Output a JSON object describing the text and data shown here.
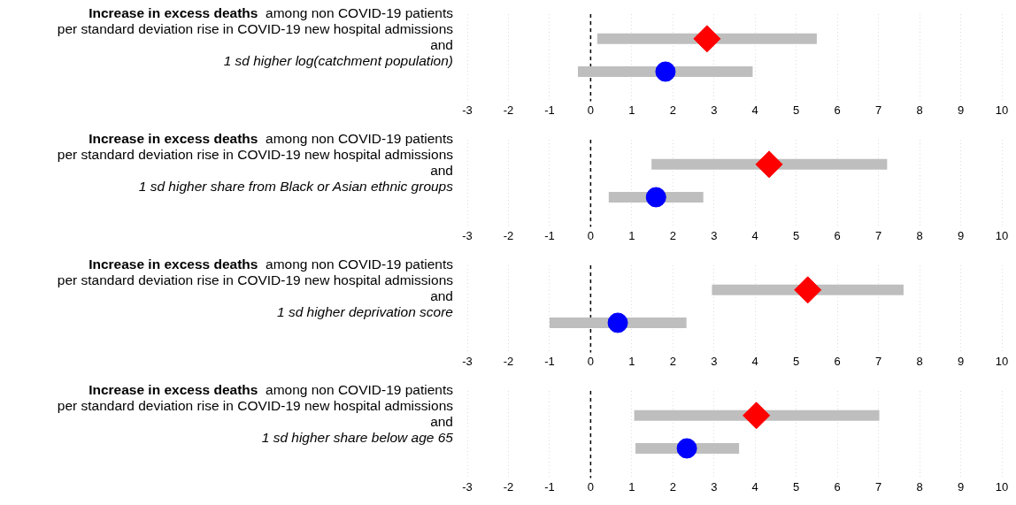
{
  "chart_data": [
    {
      "type": "scatter",
      "orientation": "horizontal",
      "categories": [
        null,
        null
      ],
      "xlim": [
        -3,
        10
      ],
      "xticks": [
        -3,
        -2,
        -1,
        0,
        1,
        2,
        3,
        4,
        5,
        6,
        7,
        8,
        9,
        10
      ],
      "grid": "x",
      "legend": false,
      "tick_labels": "x",
      "annotations": [
        "Increase in excess deaths",
        "among non COVID-19 patients",
        "per standard deviation rise in COVID-19 new hospital admissions",
        "and",
        "1 sd higher log(catchment population)"
      ],
      "ref_lines": [
        {
          "axis": "x",
          "value": 0,
          "line_style": "dashed",
          "color": "#000000"
        }
      ],
      "series": [
        {
          "color": "#ff0000",
          "marker": "diamond",
          "values": [
            2.83,
            null
          ],
          "errors": [
            [
              0.16,
              5.5
            ],
            null
          ]
        },
        {
          "color": "#0000ff",
          "marker": "circle",
          "values": [
            null,
            1.82
          ],
          "errors": [
            null,
            [
              -0.31,
              3.94
            ]
          ]
        }
      ]
    },
    {
      "type": "scatter",
      "orientation": "horizontal",
      "categories": [
        null,
        null
      ],
      "xlim": [
        -3,
        10
      ],
      "xticks": [
        -3,
        -2,
        -1,
        0,
        1,
        2,
        3,
        4,
        5,
        6,
        7,
        8,
        9,
        10
      ],
      "grid": "x",
      "legend": false,
      "tick_labels": "x",
      "annotations": [
        "Increase in excess deaths",
        "among non COVID-19 patients",
        "per standard deviation rise in COVID-19 new hospital admissions",
        "and",
        "1 sd higher share from Black or Asian ethnic groups"
      ],
      "ref_lines": [
        {
          "axis": "x",
          "value": 0,
          "line_style": "dashed",
          "color": "#000000"
        }
      ],
      "series": [
        {
          "color": "#ff0000",
          "marker": "diamond",
          "values": [
            4.34,
            null
          ],
          "errors": [
            [
              1.48,
              7.21
            ],
            null
          ]
        },
        {
          "color": "#0000ff",
          "marker": "circle",
          "values": [
            null,
            1.59
          ],
          "errors": [
            null,
            [
              0.44,
              2.74
            ]
          ]
        }
      ]
    },
    {
      "type": "scatter",
      "orientation": "horizontal",
      "categories": [
        null,
        null
      ],
      "xlim": [
        -3,
        10
      ],
      "xticks": [
        -3,
        -2,
        -1,
        0,
        1,
        2,
        3,
        4,
        5,
        6,
        7,
        8,
        9,
        10
      ],
      "grid": "x",
      "legend": false,
      "tick_labels": "x",
      "annotations": [
        "Increase in excess deaths",
        "among non COVID-19 patients",
        "per standard deviation rise in COVID-19 new hospital admissions",
        "and",
        "1 sd higher deprivation score"
      ],
      "ref_lines": [
        {
          "axis": "x",
          "value": 0,
          "line_style": "dashed",
          "color": "#000000"
        }
      ],
      "series": [
        {
          "color": "#ff0000",
          "marker": "diamond",
          "values": [
            5.28,
            null
          ],
          "errors": [
            [
              2.95,
              7.61
            ],
            null
          ]
        },
        {
          "color": "#0000ff",
          "marker": "circle",
          "values": [
            null,
            0.66
          ],
          "errors": [
            null,
            [
              -1.0,
              2.33
            ]
          ]
        }
      ]
    },
    {
      "type": "scatter",
      "orientation": "horizontal",
      "categories": [
        null,
        null
      ],
      "xlim": [
        -3,
        10
      ],
      "xticks": [
        -3,
        -2,
        -1,
        0,
        1,
        2,
        3,
        4,
        5,
        6,
        7,
        8,
        9,
        10
      ],
      "grid": "x",
      "legend": false,
      "tick_labels": "x",
      "annotations": [
        "Increase in excess deaths",
        "among non COVID-19 patients",
        "per standard deviation rise in COVID-19 new hospital admissions",
        "and",
        "1 sd higher share below age 65"
      ],
      "ref_lines": [
        {
          "axis": "x",
          "value": 0,
          "line_style": "dashed",
          "color": "#000000"
        }
      ],
      "series": [
        {
          "color": "#ff0000",
          "marker": "diamond",
          "values": [
            4.03,
            null
          ],
          "errors": [
            [
              1.06,
              7.02
            ],
            null
          ]
        },
        {
          "color": "#0000ff",
          "marker": "circle",
          "values": [
            null,
            2.34
          ],
          "errors": [
            null,
            [
              1.09,
              3.61
            ]
          ]
        }
      ]
    }
  ]
}
